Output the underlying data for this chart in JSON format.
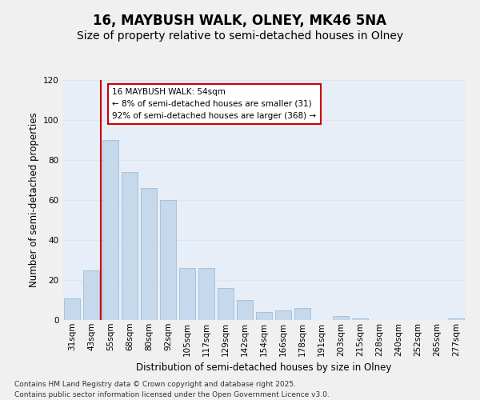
{
  "title": "16, MAYBUSH WALK, OLNEY, MK46 5NA",
  "subtitle": "Size of property relative to semi-detached houses in Olney",
  "xlabel": "Distribution of semi-detached houses by size in Olney",
  "ylabel": "Number of semi-detached properties",
  "categories": [
    "31sqm",
    "43sqm",
    "55sqm",
    "68sqm",
    "80sqm",
    "92sqm",
    "105sqm",
    "117sqm",
    "129sqm",
    "142sqm",
    "154sqm",
    "166sqm",
    "178sqm",
    "191sqm",
    "203sqm",
    "215sqm",
    "228sqm",
    "240sqm",
    "252sqm",
    "265sqm",
    "277sqm"
  ],
  "values": [
    11,
    25,
    90,
    74,
    66,
    60,
    26,
    26,
    16,
    10,
    4,
    5,
    6,
    0,
    2,
    1,
    0,
    0,
    0,
    0,
    1
  ],
  "bar_color": "#c5d8ec",
  "bar_edgecolor": "#a0bdd6",
  "grid_color": "#dce6f0",
  "background_color": "#e8eef8",
  "vline_color": "#cc0000",
  "annotation_text": "16 MAYBUSH WALK: 54sqm\n← 8% of semi-detached houses are smaller (31)\n92% of semi-detached houses are larger (368) →",
  "annotation_box_facecolor": "#ffffff",
  "annotation_box_edgecolor": "#cc0000",
  "ylim": [
    0,
    120
  ],
  "yticks": [
    0,
    20,
    40,
    60,
    80,
    100,
    120
  ],
  "footer_text": "Contains HM Land Registry data © Crown copyright and database right 2025.\nContains public sector information licensed under the Open Government Licence v3.0.",
  "title_fontsize": 12,
  "subtitle_fontsize": 10,
  "axis_label_fontsize": 8.5,
  "tick_fontsize": 7.5,
  "annotation_fontsize": 7.5,
  "footer_fontsize": 6.5
}
